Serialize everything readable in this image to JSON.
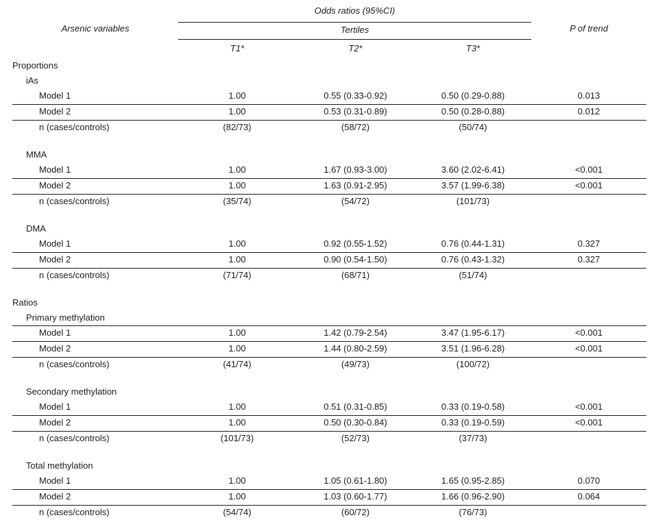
{
  "colors": {
    "text": "#1a1a1a",
    "rule": "#1a1a1a",
    "background": "#ffffff"
  },
  "table": {
    "header": {
      "arsenic_variables": "Arsenic variables",
      "odds_ratios": "Odds ratios (95%CI)",
      "tertiles": "Tertiles",
      "t1": "T1*",
      "t2": "T2*",
      "t3": "T3*",
      "p_of_trend": "P of trend"
    },
    "row_labels": {
      "model1": "Model 1",
      "model2": "Model 2",
      "n": "n (cases/controls)"
    },
    "sections": [
      {
        "title": "Proportions",
        "groups": [
          {
            "name": "iAs",
            "model1": [
              "1.00",
              "0.55 (0.33-0.92)",
              "0.50 (0.29-0.88)",
              "0.013"
            ],
            "model2": [
              "1.00",
              "0.53 (0.31-0.89)",
              "0.50 (0.28-0.88)",
              "0.012"
            ],
            "n": [
              "(82/73)",
              "(58/72)",
              "(50/74)"
            ]
          },
          {
            "name": "MMA",
            "model1": [
              "1.00",
              "1.67 (0.93-3.00)",
              "3.60 (2.02-6.41)",
              "<0.001"
            ],
            "model2": [
              "1.00",
              "1.63 (0.91-2.95)",
              "3.57 (1.99-6.38)",
              "<0.001"
            ],
            "n": [
              "(35/74)",
              "(54/72)",
              "(101/73)"
            ]
          },
          {
            "name": "DMA",
            "model1": [
              "1.00",
              "0.92 (0.55-1.52)",
              "0.76 (0.44-1.31)",
              "0.327"
            ],
            "model2": [
              "1.00",
              "0.90 (0.54-1.50)",
              "0.76 (0.43-1.32)",
              "0.327"
            ],
            "n": [
              "(71/74)",
              "(68/71)",
              "(51/74)"
            ]
          }
        ]
      },
      {
        "title": "Ratios",
        "groups": [
          {
            "name": "Primary methylation",
            "model1": [
              "1.00",
              "1.42 (0.79-2.54)",
              "3.47 (1.95-6.17)",
              "<0.001"
            ],
            "model2": [
              "1.00",
              "1.44 (0.80-2.59)",
              "3.51 (1.96-6.28)",
              "<0.001"
            ],
            "n": [
              "(41/74)",
              "(49/73)",
              "(100/72)"
            ]
          },
          {
            "name": "Secondary methylation",
            "model1": [
              "1.00",
              "0.51 (0.31-0.85)",
              "0.33 (0.19-0.58)",
              "<0.001"
            ],
            "model2": [
              "1.00",
              "0.50 (0.30-0.84)",
              "0.33 (0.19-0.59)",
              "<0.001"
            ],
            "n": [
              "(101/73)",
              "(52/73)",
              "(37/73)"
            ]
          },
          {
            "name": "Total methylation",
            "model1": [
              "1.00",
              "1.05 (0.61-1.80)",
              "1.65 (0.95-2.85)",
              "0.070"
            ],
            "model2": [
              "1.00",
              "1.03 (0.60-1.77)",
              "1.66 (0.96-2.90)",
              "0.064"
            ],
            "n": [
              "(54/74)",
              "(60/72)",
              "(76/73)"
            ]
          }
        ]
      }
    ]
  }
}
